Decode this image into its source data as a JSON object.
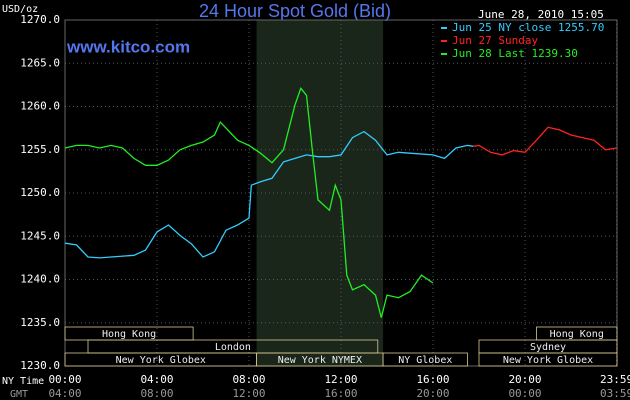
{
  "chart_data": {
    "type": "line",
    "title": "24 Hour Spot Gold (Bid)",
    "timestamp": "June 28, 2010 15:05",
    "watermark": "www.kitco.com",
    "y_label": "USD/oz",
    "x_label": "NY Time",
    "x2_label": "GMT",
    "xlim": [
      0,
      24
    ],
    "ylim": [
      1230,
      1270
    ],
    "xticks": [
      {
        "value": 0,
        "label": "00:00"
      },
      {
        "value": 4,
        "label": "04:00"
      },
      {
        "value": 8,
        "label": "08:00"
      },
      {
        "value": 12,
        "label": "12:00"
      },
      {
        "value": 16,
        "label": "16:00"
      },
      {
        "value": 20,
        "label": "20:00"
      },
      {
        "value": 23.983,
        "label": "23:59"
      }
    ],
    "x2ticks": [
      {
        "value": 0,
        "label": "04:00"
      },
      {
        "value": 4,
        "label": "08:00"
      },
      {
        "value": 8,
        "label": "12:00"
      },
      {
        "value": 12,
        "label": "16:00"
      },
      {
        "value": 16,
        "label": "20:00"
      },
      {
        "value": 20,
        "label": "00:00"
      },
      {
        "value": 23.983,
        "label": "03:59"
      }
    ],
    "yticks": [
      {
        "value": 1230,
        "label": "1230.0"
      },
      {
        "value": 1235,
        "label": "1235.0"
      },
      {
        "value": 1240,
        "label": "1240.0"
      },
      {
        "value": 1245,
        "label": "1245.0"
      },
      {
        "value": 1250,
        "label": "1250.0"
      },
      {
        "value": 1255,
        "label": "1255.0"
      },
      {
        "value": 1260,
        "label": "1260.0"
      },
      {
        "value": 1265,
        "label": "1265.0"
      },
      {
        "value": 1270,
        "label": "1270.0"
      }
    ],
    "grid": true,
    "series": [
      {
        "name": "Jun 25 NY close 1255.70",
        "color": "#33ccff",
        "x": [
          0,
          0.5,
          1,
          1.5,
          2,
          3,
          3.5,
          4,
          4.5,
          5,
          5.5,
          6,
          6.5,
          7,
          7.5,
          8,
          8.1,
          8.5,
          9,
          9.5,
          10,
          10.5,
          11,
          11.5,
          12,
          12.5,
          13,
          13.5,
          14,
          14.5,
          15,
          16,
          16.5,
          17,
          17.5,
          17.75
        ],
        "values": [
          1244.2,
          1244.0,
          1242.6,
          1242.5,
          1242.6,
          1242.8,
          1243.4,
          1245.5,
          1246.3,
          1245.1,
          1244.1,
          1242.6,
          1243.2,
          1245.7,
          1246.3,
          1247.1,
          1250.9,
          1251.3,
          1251.7,
          1253.6,
          1254.0,
          1254.4,
          1254.2,
          1254.2,
          1254.4,
          1256.4,
          1257.1,
          1256.1,
          1254.4,
          1254.7,
          1254.6,
          1254.4,
          1254.0,
          1255.2,
          1255.5,
          1255.4
        ]
      },
      {
        "name": "Jun 27 Sunday",
        "color": "#ff2222",
        "x": [
          17.75,
          18,
          18.5,
          19,
          19.5,
          20,
          20.5,
          21,
          21.5,
          22,
          22.5,
          23,
          23.5,
          23.983
        ],
        "values": [
          1255.4,
          1255.5,
          1254.7,
          1254.4,
          1254.9,
          1254.7,
          1256.1,
          1257.6,
          1257.3,
          1256.7,
          1256.4,
          1256.1,
          1255.0,
          1255.2
        ]
      },
      {
        "name": "Jun 28 Last 1239.30",
        "color": "#22ee22",
        "x": [
          0,
          0.5,
          1,
          1.5,
          2,
          2.5,
          3,
          3.5,
          4,
          4.5,
          5,
          5.5,
          6,
          6.5,
          6.75,
          7,
          7.5,
          8,
          8.5,
          9,
          9.5,
          10,
          10.25,
          10.5,
          10.75,
          11,
          11.5,
          11.75,
          12,
          12.25,
          12.5,
          13,
          13.5,
          13.75,
          14,
          14.5,
          15,
          15.5,
          16
        ],
        "values": [
          1255.2,
          1255.5,
          1255.5,
          1255.2,
          1255.5,
          1255.2,
          1254.0,
          1253.2,
          1253.2,
          1253.8,
          1255.0,
          1255.5,
          1255.9,
          1256.7,
          1258.2,
          1257.5,
          1256.1,
          1255.5,
          1254.6,
          1253.5,
          1255.0,
          1260.2,
          1262.1,
          1261.3,
          1255.0,
          1249.2,
          1248.0,
          1250.9,
          1249.2,
          1240.5,
          1238.8,
          1239.4,
          1238.2,
          1235.6,
          1238.2,
          1237.9,
          1238.6,
          1240.5,
          1239.6
        ]
      }
    ],
    "sessions": [
      {
        "name": "Hong Kong",
        "start": 0,
        "end": 5.57,
        "row": 0
      },
      {
        "name": "London",
        "start": 1,
        "end": 13.6,
        "row": 1
      },
      {
        "name": "New York Globex",
        "start": 0,
        "end": 8.33,
        "row": 2
      },
      {
        "name": "New York NYMEX",
        "start": 8.33,
        "end": 13.83,
        "row": 2
      },
      {
        "name": "NY Globex",
        "start": 13.83,
        "end": 17.5,
        "row": 2
      },
      {
        "name": "Hong Kong",
        "start": 20.5,
        "end": 24,
        "row": 0
      },
      {
        "name": "Sydney",
        "start": 18,
        "end": 24,
        "row": 1
      },
      {
        "name": "New York Globex",
        "start": 18,
        "end": 24,
        "row": 2
      }
    ]
  }
}
